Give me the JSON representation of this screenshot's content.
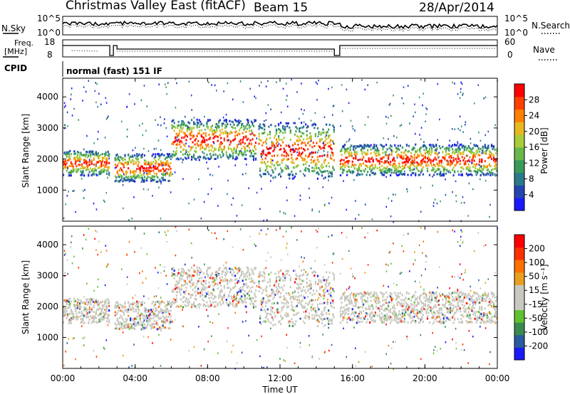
{
  "header": {
    "title": "Christmas Valley East (fitACF)",
    "beam": "Beam 15",
    "date": "28/Apr/2014"
  },
  "top_panels": {
    "nsky_label": "N.Sky",
    "nsearch_label": "N.Search",
    "count_ticks": [
      "10^5",
      "10^0"
    ],
    "freq_label_1": "Freq.",
    "freq_label_2": "[MHz]",
    "freq_ticks": [
      "18",
      "8"
    ],
    "nave_label": "Nave",
    "nave_ticks": [
      "60",
      "0"
    ],
    "cpid_label": "CPID",
    "cpid_text": "normal (fast) 151 IF"
  },
  "chart_data": [
    {
      "type": "heatmap",
      "name": "power",
      "ylabel": "Slant Range [km]",
      "y_ticks": [
        "4000",
        "3000",
        "2000",
        "1000"
      ],
      "y_tick_values": [
        4000,
        3000,
        2000,
        1000
      ],
      "ylim": [
        0,
        4600
      ],
      "xlim_hours": [
        0,
        24
      ],
      "colorbar_label": "Power [dB]",
      "colorbar_ticks": [
        "28",
        "24",
        "20",
        "16",
        "12",
        "8",
        "4"
      ],
      "colorbar_colors": [
        "#1a1aff",
        "#2445b0",
        "#2a7a8a",
        "#3a9a5a",
        "#68b84a",
        "#a8cc3a",
        "#e8b820",
        "#ff8000",
        "#ff4000",
        "#ff0000"
      ],
      "echo_bands": [
        {
          "t0": 0.0,
          "t1": 2.6,
          "r0": 1500,
          "r1": 2300
        },
        {
          "t0": 2.8,
          "t1": 6.0,
          "r0": 1300,
          "r1": 2200
        },
        {
          "t0": 6.0,
          "t1": 10.7,
          "r0": 2000,
          "r1": 3300
        },
        {
          "t0": 10.8,
          "t1": 15.0,
          "r0": 1400,
          "r1": 3200
        },
        {
          "t0": 15.3,
          "t1": 24.0,
          "r0": 1500,
          "r1": 2500
        }
      ]
    },
    {
      "type": "heatmap",
      "name": "velocity",
      "ylabel": "Slant Range [km]",
      "y_ticks": [
        "4000",
        "3000",
        "2000",
        "1000"
      ],
      "y_tick_values": [
        4000,
        3000,
        2000,
        1000
      ],
      "ylim": [
        0,
        4600
      ],
      "xlim_hours": [
        0,
        24
      ],
      "colorbar_label": "Velocity [m s⁻¹]",
      "colorbar_ticks": [
        "200",
        "100",
        "50",
        "15",
        "-15",
        "-50",
        "-100",
        "-200"
      ],
      "colorbar_colors": [
        "#1a1aff",
        "#2a5aa0",
        "#3a8a50",
        "#60c030",
        "#c8c8c0",
        "#c8c8c0",
        "#e8a020",
        "#ff7000",
        "#ff3000",
        "#ff0000"
      ]
    }
  ],
  "x_axis": {
    "label": "Time UT",
    "ticks": [
      "00:00",
      "04:00",
      "08:00",
      "12:00",
      "16:00",
      "20:00",
      "00:00"
    ]
  }
}
